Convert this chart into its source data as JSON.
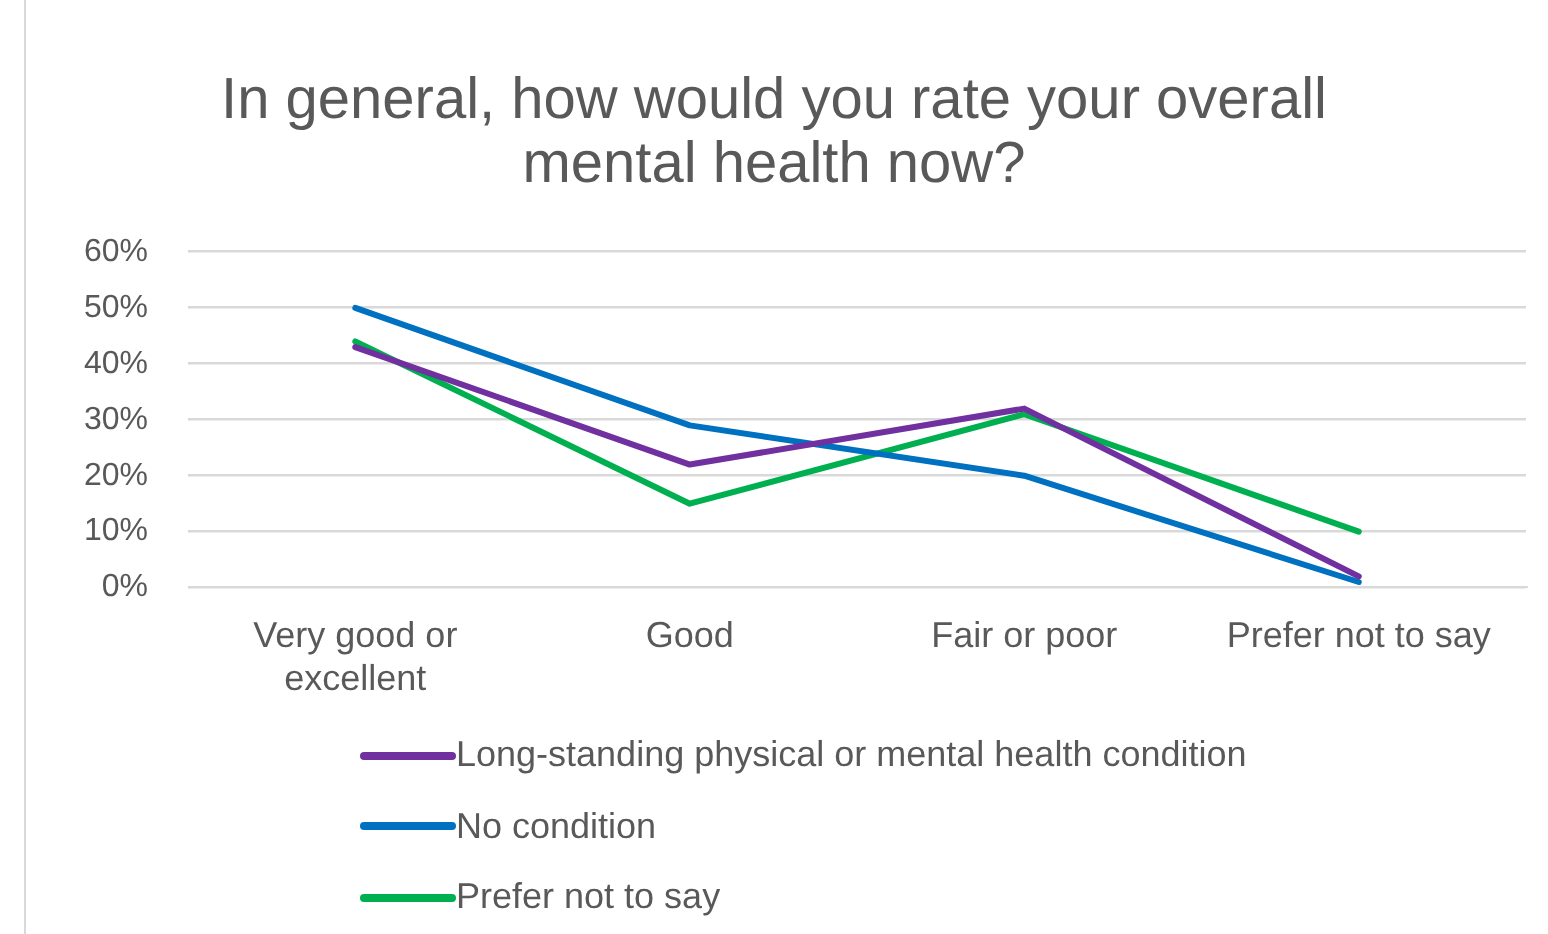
{
  "chart_data": {
    "type": "line",
    "title": "In general, how would you rate your overall mental health now?",
    "categories": [
      "Very good or excellent",
      "Good",
      "Fair or poor",
      "Prefer not to say"
    ],
    "series": [
      {
        "name": "Long-standing physical or mental health condition",
        "color": "#7030a0",
        "values": [
          43,
          22,
          32,
          2
        ]
      },
      {
        "name": "No condition",
        "color": "#0070c0",
        "values": [
          50,
          29,
          20,
          1
        ]
      },
      {
        "name": "Prefer not to say",
        "color": "#00b050",
        "values": [
          44,
          15,
          31,
          10
        ]
      }
    ],
    "ylim": [
      0,
      60
    ],
    "yticks": [
      {
        "value": 0,
        "label": "0%"
      },
      {
        "value": 10,
        "label": "10%"
      },
      {
        "value": 20,
        "label": "20%"
      },
      {
        "value": 30,
        "label": "30%"
      },
      {
        "value": 40,
        "label": "40%"
      },
      {
        "value": 50,
        "label": "50%"
      },
      {
        "value": 60,
        "label": "60%"
      }
    ],
    "grid": "y",
    "legend": "bottom",
    "marker": "none"
  }
}
